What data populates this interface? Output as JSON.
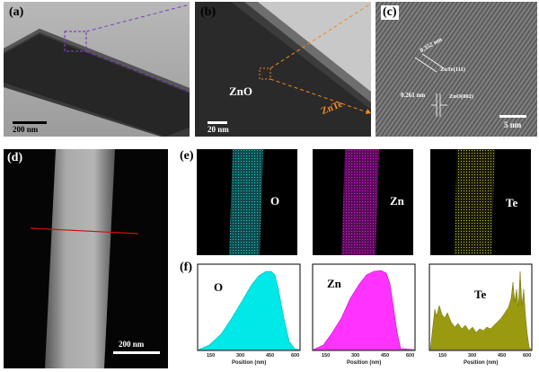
{
  "figure": {
    "panel_a": {
      "label": "(a)",
      "scale": "200 nm"
    },
    "panel_b": {
      "label": "(b)",
      "scale": "20 nm",
      "shell": "ZnO",
      "core": "ZnTe"
    },
    "panel_c": {
      "label": "(c)",
      "scale": "5 nm",
      "d1": "0.352 nm",
      "plane1": "ZnTe(111)",
      "d2": "0.261 nm",
      "plane2": "ZnO(002)"
    },
    "panel_d": {
      "label": "(d)",
      "scale": "200 nm"
    },
    "panel_e": {
      "label": "(e)",
      "maps": [
        {
          "element": "O",
          "color": "#1ecfd6"
        },
        {
          "element": "Zn",
          "color": "#d81ad8"
        },
        {
          "element": "Te",
          "color": "#d6d61e"
        }
      ]
    },
    "panel_f": {
      "label": "(f)",
      "xlabel": "Position (nm)",
      "ticks": [
        "150",
        "300",
        "450",
        "600"
      ],
      "profiles": [
        {
          "element": "O",
          "fill": "#00e8e8"
        },
        {
          "element": "Zn",
          "fill": "#ff33ff"
        },
        {
          "element": "Te",
          "fill": "#9a9a10"
        }
      ]
    }
  }
}
